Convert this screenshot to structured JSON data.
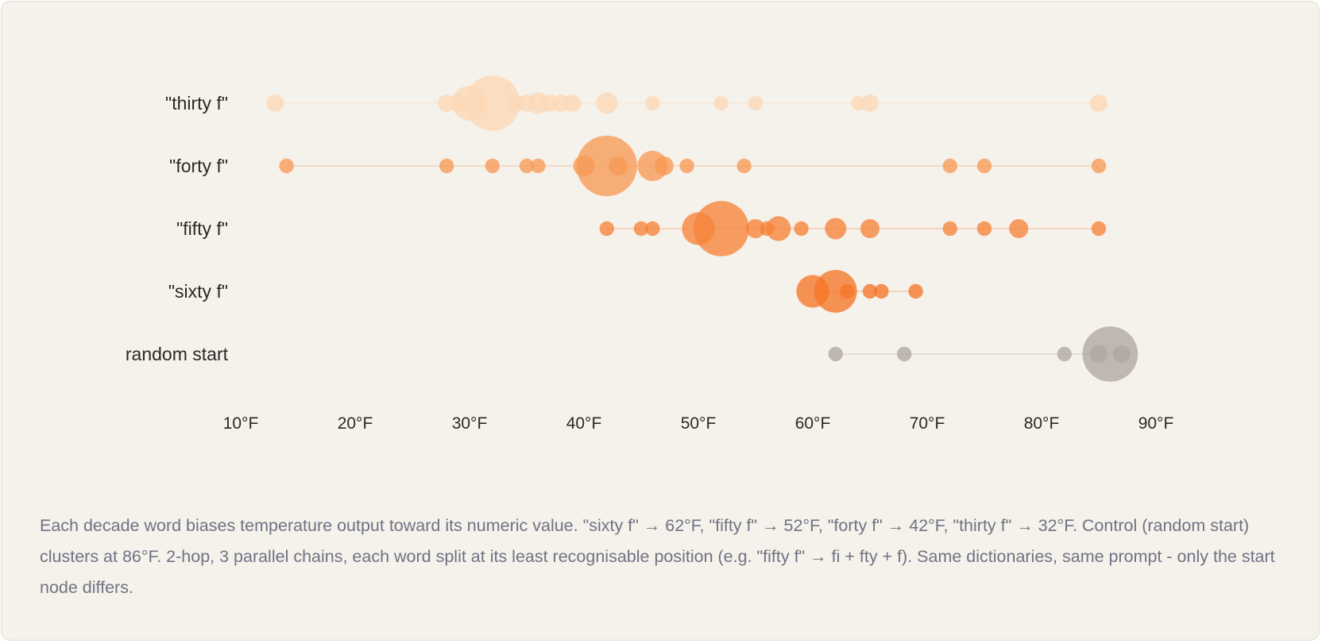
{
  "chart_data": {
    "type": "scatter",
    "title": "",
    "xlabel": "",
    "ylabel": "",
    "xlim": [
      10,
      90
    ],
    "x_ticks": [
      10,
      20,
      30,
      40,
      50,
      60,
      70,
      80,
      90
    ],
    "x_tick_labels": [
      "10°F",
      "20°F",
      "30°F",
      "40°F",
      "50°F",
      "60°F",
      "70°F",
      "80°F",
      "90°F"
    ],
    "series": [
      {
        "name": "\"thirty f\"",
        "color": "#fcd9b6",
        "points": [
          {
            "x": 13,
            "count": 1
          },
          {
            "x": 28,
            "count": 1
          },
          {
            "x": 29,
            "count": 1
          },
          {
            "x": 30,
            "count": 4
          },
          {
            "x": 32,
            "count": 10
          },
          {
            "x": 34,
            "count": 1
          },
          {
            "x": 35,
            "count": 1
          },
          {
            "x": 36,
            "count": 1.5
          },
          {
            "x": 37,
            "count": 1
          },
          {
            "x": 38,
            "count": 1
          },
          {
            "x": 39,
            "count": 1
          },
          {
            "x": 42,
            "count": 1.5
          },
          {
            "x": 46,
            "count": 0.7
          },
          {
            "x": 52,
            "count": 0.7
          },
          {
            "x": 55,
            "count": 0.7
          },
          {
            "x": 64,
            "count": 0.7
          },
          {
            "x": 65,
            "count": 1
          },
          {
            "x": 85,
            "count": 1
          }
        ]
      },
      {
        "name": "\"forty f\"",
        "color": "#f79a55",
        "points": [
          {
            "x": 14,
            "count": 0.7
          },
          {
            "x": 28,
            "count": 0.7
          },
          {
            "x": 32,
            "count": 0.7
          },
          {
            "x": 35,
            "count": 0.7
          },
          {
            "x": 36,
            "count": 0.7
          },
          {
            "x": 40,
            "count": 1.5
          },
          {
            "x": 42,
            "count": 12
          },
          {
            "x": 43,
            "count": 1.2
          },
          {
            "x": 46,
            "count": 3
          },
          {
            "x": 47,
            "count": 1.2
          },
          {
            "x": 49,
            "count": 0.7
          },
          {
            "x": 54,
            "count": 0.7
          },
          {
            "x": 72,
            "count": 0.7
          },
          {
            "x": 75,
            "count": 0.7
          },
          {
            "x": 85,
            "count": 0.7
          }
        ]
      },
      {
        "name": "\"fifty f\"",
        "color": "#f6843a",
        "points": [
          {
            "x": 42,
            "count": 0.7
          },
          {
            "x": 45,
            "count": 0.7
          },
          {
            "x": 46,
            "count": 0.7
          },
          {
            "x": 50,
            "count": 3.5
          },
          {
            "x": 52,
            "count": 10
          },
          {
            "x": 55,
            "count": 1.2
          },
          {
            "x": 56,
            "count": 0.7
          },
          {
            "x": 57,
            "count": 2
          },
          {
            "x": 59,
            "count": 0.7
          },
          {
            "x": 62,
            "count": 1.5
          },
          {
            "x": 65,
            "count": 1.2
          },
          {
            "x": 72,
            "count": 0.7
          },
          {
            "x": 75,
            "count": 0.7
          },
          {
            "x": 78,
            "count": 1.2
          },
          {
            "x": 85,
            "count": 0.7
          }
        ]
      },
      {
        "name": "\"sixty f\"",
        "color": "#f57628",
        "points": [
          {
            "x": 60,
            "count": 3.5
          },
          {
            "x": 62,
            "count": 6
          },
          {
            "x": 63,
            "count": 0.7
          },
          {
            "x": 65,
            "count": 0.7
          },
          {
            "x": 66,
            "count": 0.7
          },
          {
            "x": 69,
            "count": 0.7
          }
        ]
      },
      {
        "name": "random start",
        "color": "#aea89f",
        "points": [
          {
            "x": 62,
            "count": 0.7
          },
          {
            "x": 68,
            "count": 0.7
          },
          {
            "x": 82,
            "count": 0.7
          },
          {
            "x": 85,
            "count": 1
          },
          {
            "x": 86,
            "count": 10
          },
          {
            "x": 87,
            "count": 1
          }
        ]
      }
    ]
  },
  "caption": "Each decade word biases temperature output toward its numeric value. \"sixty f\" → 62°F, \"fifty f\" → 52°F, \"forty f\" → 42°F, \"thirty f\" → 32°F. Control (random start) clusters at 86°F. 2-hop, 3 parallel chains, each word split at its least recognisable position (e.g. \"fifty f\" → fi + fty + f). Same dictionaries, same prompt - only the start node differs."
}
